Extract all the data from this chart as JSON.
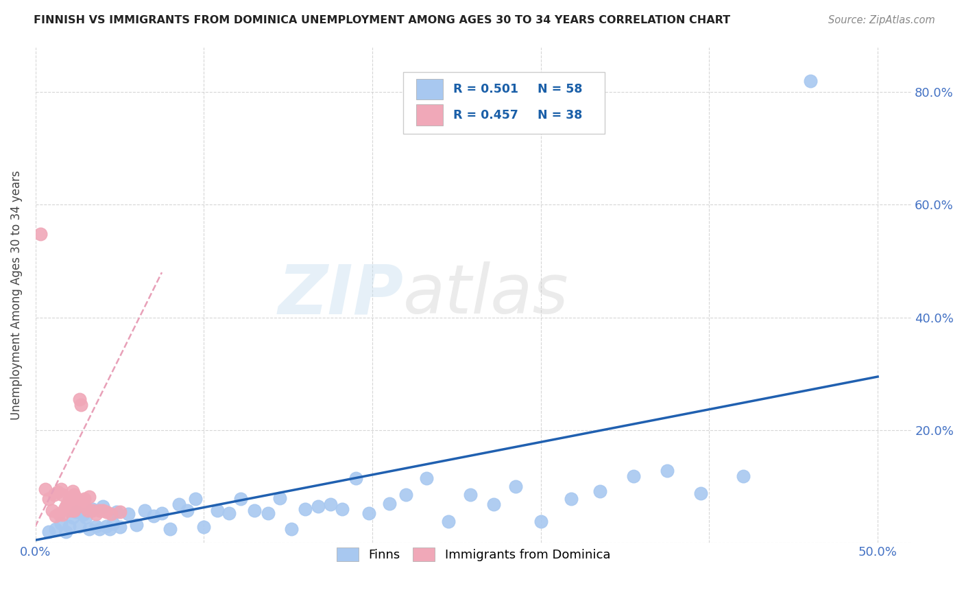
{
  "title": "FINNISH VS IMMIGRANTS FROM DOMINICA UNEMPLOYMENT AMONG AGES 30 TO 34 YEARS CORRELATION CHART",
  "source": "Source: ZipAtlas.com",
  "ylabel": "Unemployment Among Ages 30 to 34 years",
  "xlim": [
    0.0,
    0.52
  ],
  "ylim": [
    0.0,
    0.88
  ],
  "xticks": [
    0.0,
    0.1,
    0.2,
    0.3,
    0.4,
    0.5
  ],
  "yticks": [
    0.0,
    0.2,
    0.4,
    0.6,
    0.8
  ],
  "watermark_zip": "ZIP",
  "watermark_atlas": "atlas",
  "finns_color": "#a8c8f0",
  "dom_color": "#f0a8b8",
  "finns_line_color": "#2060b0",
  "dom_trendline_color": "#e8a0b8",
  "background_color": "#ffffff",
  "grid_color": "#cccccc",
  "finns_x": [
    0.008,
    0.012,
    0.015,
    0.018,
    0.02,
    0.022,
    0.024,
    0.026,
    0.028,
    0.03,
    0.032,
    0.034,
    0.036,
    0.038,
    0.04,
    0.042,
    0.044,
    0.046,
    0.048,
    0.05,
    0.055,
    0.06,
    0.065,
    0.07,
    0.075,
    0.08,
    0.085,
    0.09,
    0.095,
    0.1,
    0.108,
    0.115,
    0.122,
    0.13,
    0.138,
    0.145,
    0.152,
    0.16,
    0.168,
    0.175,
    0.182,
    0.19,
    0.198,
    0.21,
    0.22,
    0.232,
    0.245,
    0.258,
    0.272,
    0.285,
    0.3,
    0.318,
    0.335,
    0.355,
    0.375,
    0.395,
    0.42,
    0.46
  ],
  "finns_y": [
    0.02,
    0.025,
    0.035,
    0.02,
    0.03,
    0.045,
    0.055,
    0.03,
    0.05,
    0.045,
    0.025,
    0.06,
    0.03,
    0.025,
    0.065,
    0.03,
    0.025,
    0.035,
    0.055,
    0.028,
    0.052,
    0.032,
    0.058,
    0.048,
    0.053,
    0.025,
    0.068,
    0.058,
    0.078,
    0.028,
    0.058,
    0.053,
    0.078,
    0.058,
    0.053,
    0.08,
    0.025,
    0.06,
    0.065,
    0.068,
    0.06,
    0.115,
    0.053,
    0.07,
    0.085,
    0.115,
    0.038,
    0.085,
    0.068,
    0.1,
    0.038,
    0.078,
    0.092,
    0.118,
    0.128,
    0.088,
    0.118,
    0.82
  ],
  "dom_x": [
    0.003,
    0.006,
    0.008,
    0.01,
    0.011,
    0.012,
    0.013,
    0.014,
    0.015,
    0.016,
    0.016,
    0.017,
    0.018,
    0.018,
    0.019,
    0.02,
    0.02,
    0.021,
    0.022,
    0.022,
    0.023,
    0.023,
    0.024,
    0.025,
    0.026,
    0.027,
    0.028,
    0.029,
    0.03,
    0.031,
    0.032,
    0.034,
    0.036,
    0.038,
    0.04,
    0.042,
    0.045,
    0.05
  ],
  "dom_y": [
    0.548,
    0.095,
    0.078,
    0.058,
    0.085,
    0.048,
    0.09,
    0.052,
    0.095,
    0.05,
    0.085,
    0.06,
    0.065,
    0.06,
    0.068,
    0.058,
    0.078,
    0.068,
    0.058,
    0.092,
    0.058,
    0.085,
    0.07,
    0.078,
    0.255,
    0.245,
    0.068,
    0.078,
    0.062,
    0.058,
    0.082,
    0.058,
    0.052,
    0.058,
    0.058,
    0.055,
    0.052,
    0.055
  ],
  "finns_line_x": [
    0.0,
    0.5
  ],
  "finns_line_y": [
    0.005,
    0.295
  ],
  "dom_line_x": [
    -0.005,
    0.075
  ],
  "dom_line_y": [
    0.0,
    0.48
  ]
}
